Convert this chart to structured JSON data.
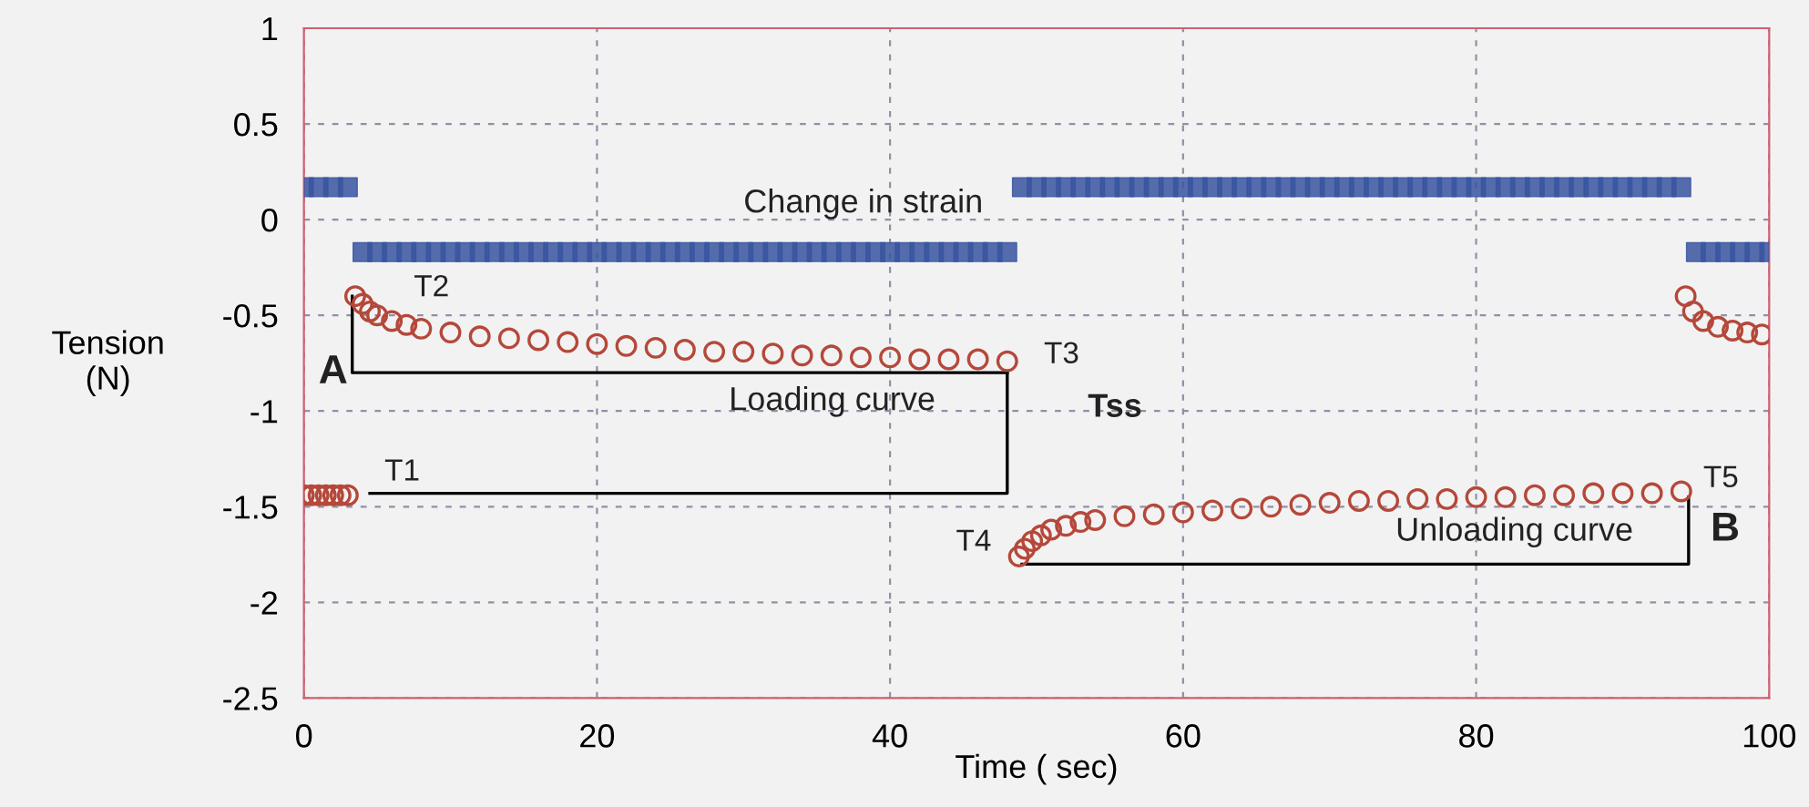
{
  "chart_data": {
    "type": "scatter",
    "xlabel": "Time ( sec)",
    "ylabel": "Tension\n(N)",
    "xlim": [
      0,
      100
    ],
    "xticks": [
      0,
      20,
      40,
      60,
      80,
      100
    ],
    "ylim": [
      -2.5,
      1
    ],
    "yticks": [
      -2.5,
      -2,
      -1.5,
      -1,
      -0.5,
      0,
      0.5,
      1
    ],
    "grid": true,
    "legend": false,
    "series": [
      {
        "type": "line",
        "color": "#000000",
        "marker": "none",
        "x": [
          3.3,
          3.3,
          48
        ],
        "values": [
          -0.4,
          -0.8,
          -0.8
        ]
      },
      {
        "type": "line",
        "color": "#000000",
        "marker": "none",
        "x": [
          48,
          48,
          4.5
        ],
        "values": [
          -0.8,
          -1.43,
          -1.43
        ]
      },
      {
        "type": "line",
        "color": "#000000",
        "marker": "none",
        "x": [
          49,
          94.5,
          94.5
        ],
        "values": [
          -1.8,
          -1.8,
          -1.45
        ]
      },
      {
        "color": "#3a55a0",
        "marker": "square",
        "x": [
          0,
          1,
          2,
          3,
          4,
          5,
          6,
          7,
          8,
          9,
          10,
          11,
          12,
          13,
          14,
          15,
          16,
          17,
          18,
          19,
          20,
          21,
          22,
          23,
          24,
          25,
          26,
          27,
          28,
          29,
          30,
          31,
          32,
          33,
          34,
          35,
          36,
          37,
          38,
          39,
          40,
          41,
          42,
          43,
          44,
          45,
          46,
          47,
          48,
          49,
          50,
          51,
          52,
          53,
          54,
          55,
          56,
          57,
          58,
          59,
          60,
          61,
          62,
          63,
          64,
          65,
          66,
          67,
          68,
          69,
          70,
          71,
          72,
          73,
          74,
          75,
          76,
          77,
          78,
          79,
          80,
          81,
          82,
          83,
          84,
          85,
          86,
          87,
          88,
          89,
          90,
          91,
          92,
          93,
          94,
          95,
          96,
          97,
          98,
          99,
          100
        ],
        "values": [
          0.17,
          0.17,
          0.17,
          0.17,
          -0.17,
          -0.17,
          -0.17,
          -0.17,
          -0.17,
          -0.17,
          -0.17,
          -0.17,
          -0.17,
          -0.17,
          -0.17,
          -0.17,
          -0.17,
          -0.17,
          -0.17,
          -0.17,
          -0.17,
          -0.17,
          -0.17,
          -0.17,
          -0.17,
          -0.17,
          -0.17,
          -0.17,
          -0.17,
          -0.17,
          -0.17,
          -0.17,
          -0.17,
          -0.17,
          -0.17,
          -0.17,
          -0.17,
          -0.17,
          -0.17,
          -0.17,
          -0.17,
          -0.17,
          -0.17,
          -0.17,
          -0.17,
          -0.17,
          -0.17,
          -0.17,
          -0.17,
          0.17,
          0.17,
          0.17,
          0.17,
          0.17,
          0.17,
          0.17,
          0.17,
          0.17,
          0.17,
          0.17,
          0.17,
          0.17,
          0.17,
          0.17,
          0.17,
          0.17,
          0.17,
          0.17,
          0.17,
          0.17,
          0.17,
          0.17,
          0.17,
          0.17,
          0.17,
          0.17,
          0.17,
          0.17,
          0.17,
          0.17,
          0.17,
          0.17,
          0.17,
          0.17,
          0.17,
          0.17,
          0.17,
          0.17,
          0.17,
          0.17,
          0.17,
          0.17,
          0.17,
          0.17,
          0.17,
          -0.17,
          -0.17,
          -0.17,
          -0.17,
          -0.17,
          -0.17
        ]
      },
      {
        "color": "#b5483a",
        "marker": "circle",
        "x": [
          0,
          0.5,
          1,
          1.5,
          2,
          2.5,
          3,
          3.5,
          4,
          4.5,
          5,
          6,
          7,
          8,
          10,
          12,
          14,
          16,
          18,
          20,
          22,
          24,
          26,
          28,
          30,
          32,
          34,
          36,
          38,
          40,
          42,
          44,
          46,
          48,
          48.8,
          49.2,
          49.7,
          50.3,
          51,
          52,
          53,
          54,
          56,
          58,
          60,
          62,
          64,
          66,
          68,
          70,
          72,
          74,
          76,
          78,
          80,
          82,
          84,
          86,
          88,
          90,
          92,
          94,
          94.3,
          94.8,
          95.5,
          96.5,
          97.5,
          98.5,
          99.5
        ],
        "values": [
          -1.44,
          -1.44,
          -1.44,
          -1.44,
          -1.44,
          -1.44,
          -1.44,
          -0.4,
          -0.44,
          -0.48,
          -0.5,
          -0.53,
          -0.55,
          -0.57,
          -0.59,
          -0.61,
          -0.62,
          -0.63,
          -0.64,
          -0.65,
          -0.66,
          -0.67,
          -0.68,
          -0.69,
          -0.69,
          -0.7,
          -0.71,
          -0.71,
          -0.72,
          -0.72,
          -0.73,
          -0.73,
          -0.73,
          -0.74,
          -1.76,
          -1.72,
          -1.68,
          -1.65,
          -1.62,
          -1.6,
          -1.58,
          -1.57,
          -1.55,
          -1.54,
          -1.53,
          -1.52,
          -1.51,
          -1.5,
          -1.49,
          -1.48,
          -1.47,
          -1.47,
          -1.46,
          -1.46,
          -1.45,
          -1.45,
          -1.44,
          -1.44,
          -1.43,
          -1.43,
          -1.43,
          -1.42,
          -0.4,
          -0.48,
          -0.53,
          -0.56,
          -0.58,
          -0.59,
          -0.6
        ]
      }
    ],
    "annotations": [
      "Change in strain",
      "T1",
      "T2",
      "T3",
      "T4",
      "T5",
      "A",
      "B",
      "Tss",
      "Loading curve",
      "Unloading curve"
    ]
  }
}
